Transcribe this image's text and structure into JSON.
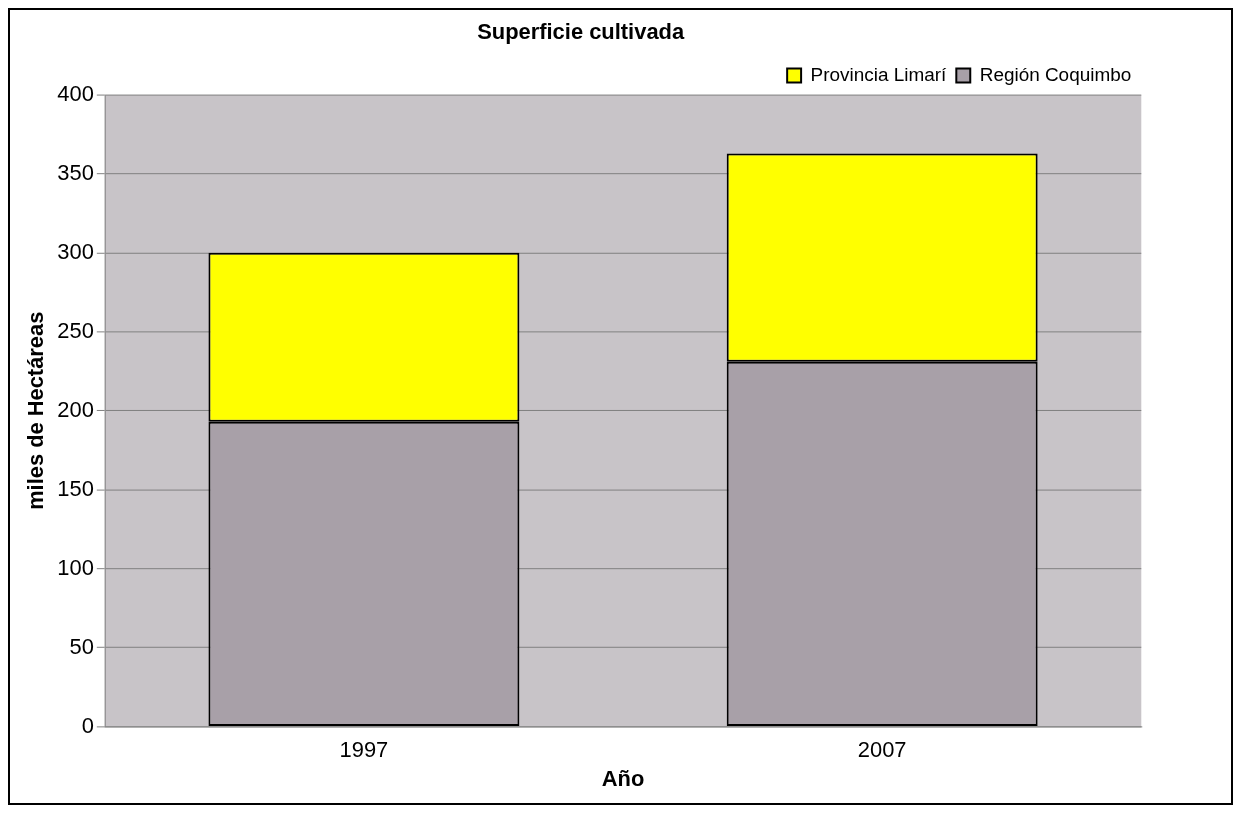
{
  "chart_data": {
    "type": "bar",
    "title": "Superficie cultivada",
    "xlabel": "Año",
    "ylabel": "miles de Hectáreas",
    "categories": [
      "1997",
      "2007"
    ],
    "series": [
      {
        "name": "Región Coquimbo",
        "color": "#a8a0a8",
        "values": [
          193,
          231
        ]
      },
      {
        "name": "Provincia Limarí",
        "color": "#ffff00",
        "values": [
          107,
          132
        ]
      }
    ],
    "stacked": true,
    "ylim": [
      0,
      400
    ],
    "yticks": [
      0,
      50,
      100,
      150,
      200,
      250,
      300,
      350,
      400
    ],
    "grid": "y",
    "legend": "top right"
  }
}
